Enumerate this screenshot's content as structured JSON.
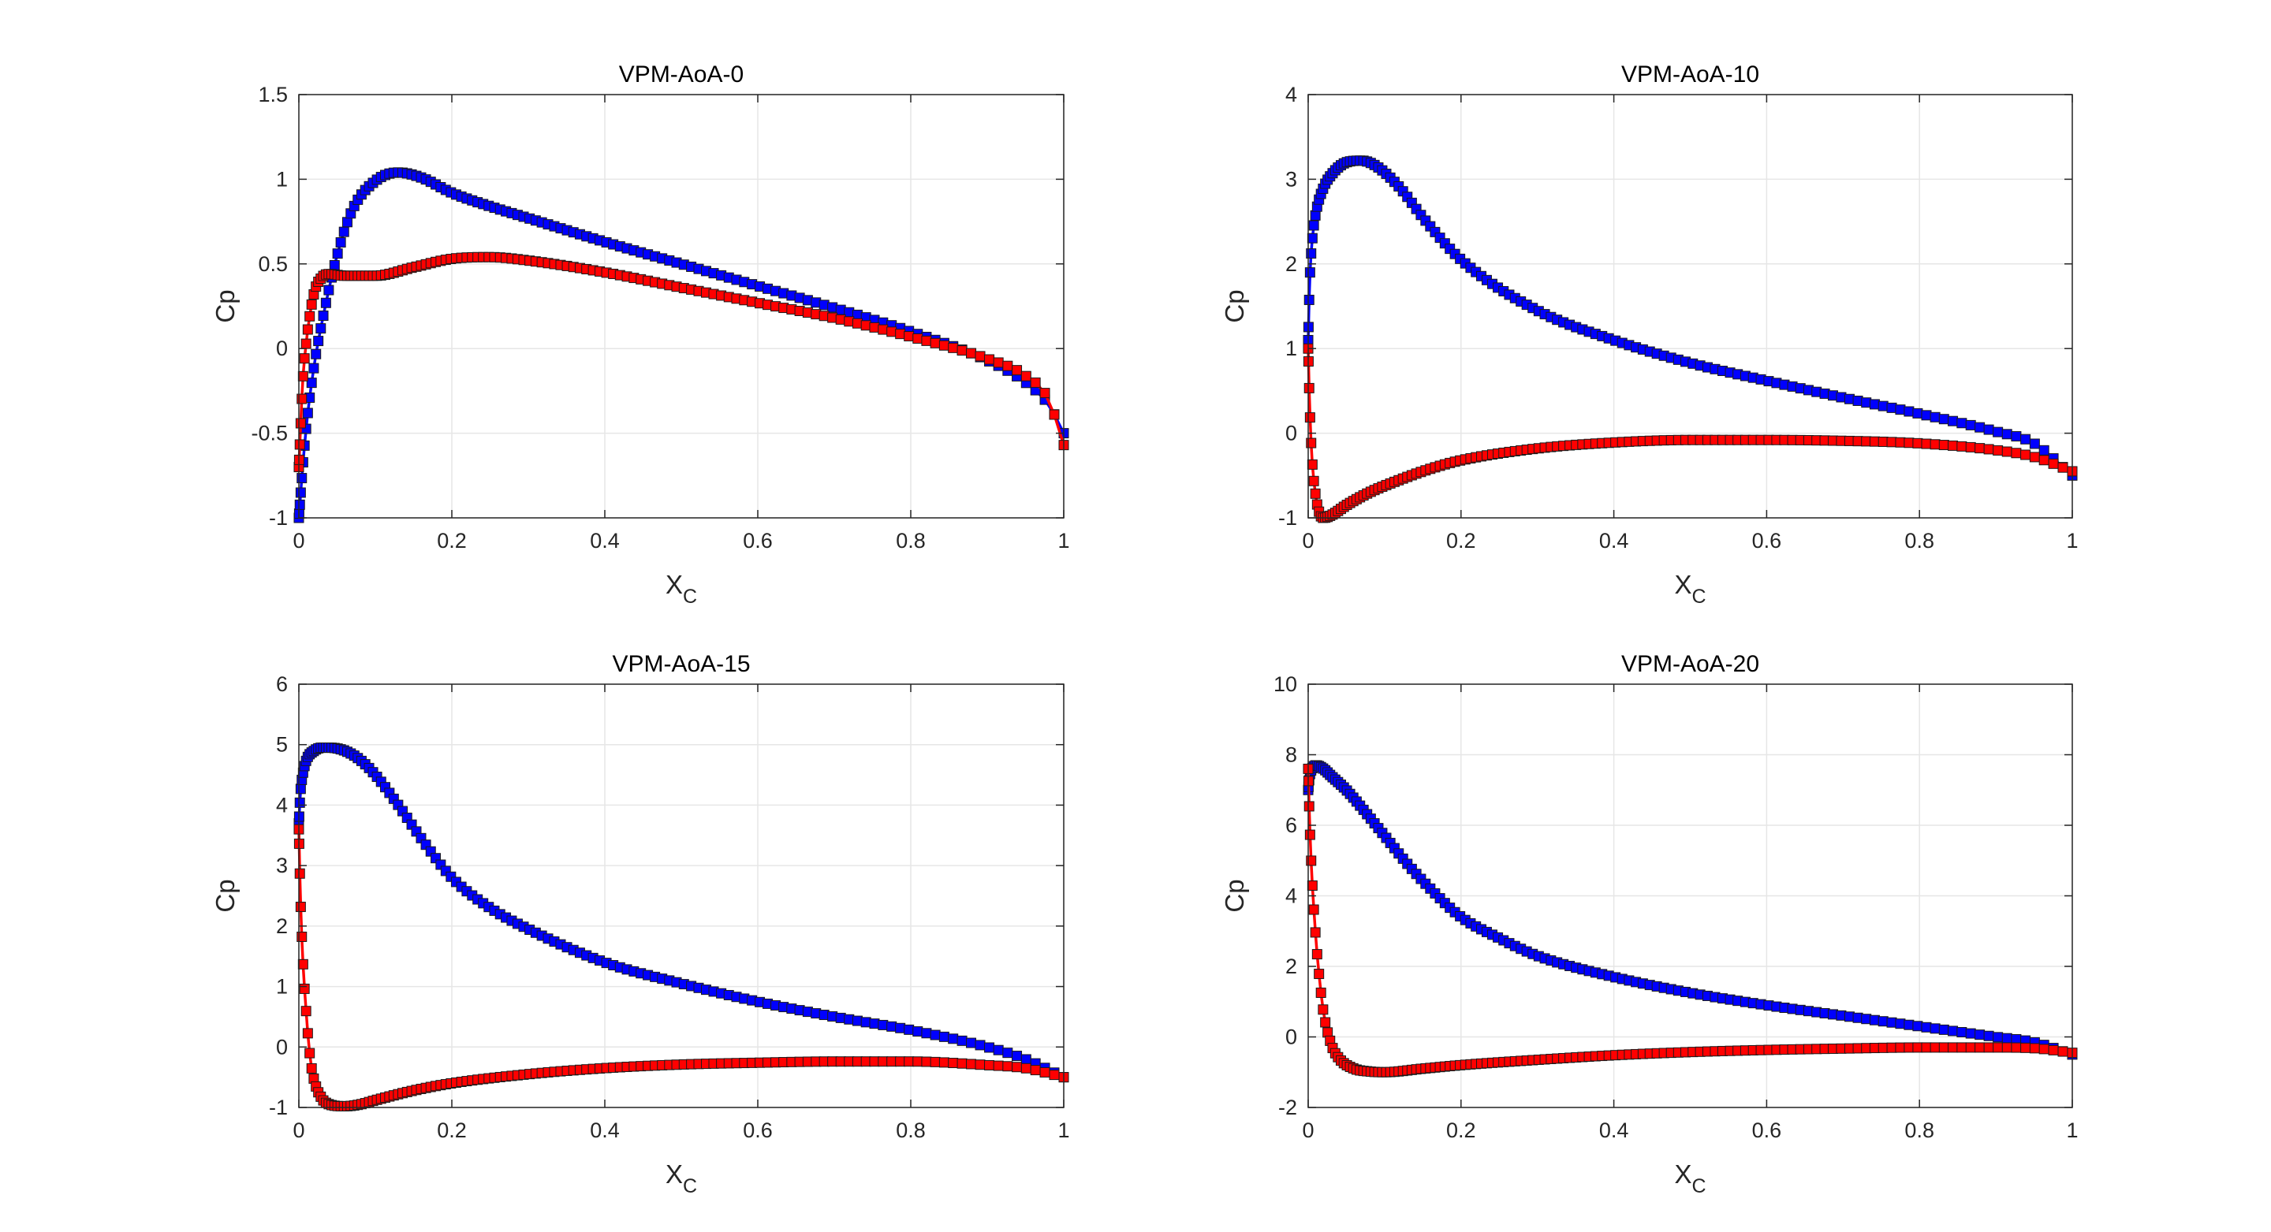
{
  "chart_data": [
    {
      "type": "line",
      "title": "VPM-AoA-0",
      "xlabel": "X",
      "xlabel_sub": "C",
      "ylabel": "Cp",
      "xlim": [
        0,
        1
      ],
      "ylim": [
        -1,
        1.5
      ],
      "xticks": [
        0,
        0.2,
        0.4,
        0.6,
        0.8,
        1
      ],
      "xtick_labels": [
        "0",
        "0.2",
        "0.4",
        "0.6",
        "0.8",
        "1"
      ],
      "yticks": [
        -1,
        -0.5,
        0,
        0.5,
        1,
        1.5
      ],
      "ytick_labels": [
        "-1",
        "-0.5",
        "0",
        "0.5",
        "1",
        "1.5"
      ],
      "grid": true,
      "series": [
        {
          "color": "#0000ff",
          "marker": "square",
          "x": [
            0,
            0.005,
            0.01,
            0.02,
            0.03,
            0.05,
            0.07,
            0.1,
            0.13,
            0.16,
            0.2,
            0.25,
            0.3,
            0.4,
            0.5,
            0.6,
            0.7,
            0.8,
            0.9,
            0.95,
            0.98,
            1
          ],
          "y": [
            -1,
            -0.7,
            -0.45,
            -0.1,
            0.15,
            0.55,
            0.82,
            0.99,
            1.04,
            1.01,
            0.92,
            0.84,
            0.77,
            0.63,
            0.5,
            0.37,
            0.24,
            0.1,
            -0.07,
            -0.2,
            -0.33,
            -0.5
          ]
        },
        {
          "color": "#ff0000",
          "marker": "square",
          "x": [
            0,
            0.005,
            0.01,
            0.02,
            0.03,
            0.04,
            0.06,
            0.1,
            0.15,
            0.2,
            0.25,
            0.3,
            0.4,
            0.5,
            0.6,
            0.7,
            0.8,
            0.9,
            0.95,
            0.98,
            1
          ],
          "y": [
            -0.7,
            -0.2,
            0.05,
            0.33,
            0.42,
            0.44,
            0.43,
            0.43,
            0.48,
            0.53,
            0.54,
            0.52,
            0.45,
            0.36,
            0.27,
            0.18,
            0.07,
            -0.06,
            -0.16,
            -0.3,
            -0.57
          ]
        }
      ]
    },
    {
      "type": "line",
      "title": "VPM-AoA-10",
      "xlabel": "X",
      "xlabel_sub": "C",
      "ylabel": "Cp",
      "xlim": [
        0,
        1
      ],
      "ylim": [
        -1,
        4
      ],
      "xticks": [
        0,
        0.2,
        0.4,
        0.6,
        0.8,
        1
      ],
      "xtick_labels": [
        "0",
        "0.2",
        "0.4",
        "0.6",
        "0.8",
        "1"
      ],
      "yticks": [
        -1,
        0,
        1,
        2,
        3,
        4
      ],
      "ytick_labels": [
        "-1",
        "0",
        "1",
        "2",
        "3",
        "4"
      ],
      "grid": true,
      "series": [
        {
          "color": "#0000ff",
          "marker": "square",
          "x": [
            0,
            0.002,
            0.005,
            0.01,
            0.02,
            0.03,
            0.05,
            0.07,
            0.09,
            0.12,
            0.15,
            0.2,
            0.3,
            0.4,
            0.5,
            0.6,
            0.7,
            0.8,
            0.9,
            0.95,
            1
          ],
          "y": [
            1.1,
            1.8,
            2.25,
            2.6,
            2.9,
            3.05,
            3.2,
            3.22,
            3.15,
            2.9,
            2.55,
            2.05,
            1.45,
            1.1,
            0.83,
            0.62,
            0.42,
            0.23,
            0.02,
            -0.12,
            -0.5
          ]
        },
        {
          "color": "#ff0000",
          "marker": "square",
          "x": [
            0,
            0.002,
            0.005,
            0.01,
            0.015,
            0.02,
            0.03,
            0.05,
            0.08,
            0.12,
            0.16,
            0.2,
            0.3,
            0.4,
            0.5,
            0.6,
            0.7,
            0.8,
            0.9,
            0.95,
            1
          ],
          "y": [
            1.0,
            0.3,
            -0.3,
            -0.75,
            -0.95,
            -1.0,
            -0.97,
            -0.85,
            -0.7,
            -0.55,
            -0.42,
            -0.32,
            -0.18,
            -0.11,
            -0.08,
            -0.08,
            -0.09,
            -0.12,
            -0.2,
            -0.28,
            -0.45
          ]
        }
      ]
    },
    {
      "type": "line",
      "title": "VPM-AoA-15",
      "xlabel": "X",
      "xlabel_sub": "C",
      "ylabel": "Cp",
      "xlim": [
        0,
        1
      ],
      "ylim": [
        -1,
        6
      ],
      "xticks": [
        0,
        0.2,
        0.4,
        0.6,
        0.8,
        1
      ],
      "xtick_labels": [
        "0",
        "0.2",
        "0.4",
        "0.6",
        "0.8",
        "1"
      ],
      "yticks": [
        -1,
        0,
        1,
        2,
        3,
        4,
        5,
        6
      ],
      "ytick_labels": [
        "-1",
        "0",
        "1",
        "2",
        "3",
        "4",
        "5",
        "6"
      ],
      "grid": true,
      "series": [
        {
          "color": "#0000ff",
          "marker": "square",
          "x": [
            0,
            0.002,
            0.005,
            0.01,
            0.02,
            0.03,
            0.04,
            0.06,
            0.08,
            0.1,
            0.13,
            0.16,
            0.2,
            0.25,
            0.3,
            0.4,
            0.5,
            0.6,
            0.7,
            0.8,
            0.9,
            0.95,
            1
          ],
          "y": [
            3.7,
            4.2,
            4.5,
            4.75,
            4.9,
            4.95,
            4.95,
            4.9,
            4.75,
            4.5,
            4.0,
            3.45,
            2.8,
            2.3,
            1.95,
            1.4,
            1.05,
            0.75,
            0.5,
            0.28,
            0.0,
            -0.2,
            -0.5
          ]
        },
        {
          "color": "#ff0000",
          "marker": "square",
          "x": [
            0,
            0.002,
            0.005,
            0.01,
            0.015,
            0.02,
            0.03,
            0.04,
            0.06,
            0.08,
            0.1,
            0.15,
            0.2,
            0.3,
            0.4,
            0.5,
            0.6,
            0.7,
            0.8,
            0.9,
            0.95,
            1
          ],
          "y": [
            3.6,
            2.5,
            1.5,
            0.5,
            -0.2,
            -0.55,
            -0.85,
            -0.95,
            -0.98,
            -0.95,
            -0.88,
            -0.72,
            -0.6,
            -0.45,
            -0.35,
            -0.29,
            -0.26,
            -0.24,
            -0.24,
            -0.3,
            -0.35,
            -0.5
          ]
        }
      ]
    },
    {
      "type": "line",
      "title": "VPM-AoA-20",
      "xlabel": "X",
      "xlabel_sub": "C",
      "ylabel": "Cp",
      "xlim": [
        0,
        1
      ],
      "ylim": [
        -2,
        10
      ],
      "xticks": [
        0,
        0.2,
        0.4,
        0.6,
        0.8,
        1
      ],
      "xtick_labels": [
        "0",
        "0.2",
        "0.4",
        "0.6",
        "0.8",
        "1"
      ],
      "yticks": [
        -2,
        0,
        2,
        4,
        6,
        8,
        10
      ],
      "ytick_labels": [
        "-2",
        "0",
        "2",
        "4",
        "6",
        "8",
        "10"
      ],
      "grid": true,
      "series": [
        {
          "color": "#0000ff",
          "marker": "square",
          "x": [
            0,
            0.002,
            0.005,
            0.01,
            0.02,
            0.03,
            0.05,
            0.07,
            0.1,
            0.13,
            0.16,
            0.2,
            0.25,
            0.3,
            0.4,
            0.5,
            0.6,
            0.7,
            0.8,
            0.9,
            0.95,
            1
          ],
          "y": [
            7.0,
            7.4,
            7.6,
            7.7,
            7.6,
            7.4,
            7.0,
            6.5,
            5.7,
            4.9,
            4.2,
            3.4,
            2.8,
            2.3,
            1.7,
            1.25,
            0.9,
            0.6,
            0.3,
            0.0,
            -0.15,
            -0.5
          ]
        },
        {
          "color": "#ff0000",
          "marker": "square",
          "x": [
            0,
            0.002,
            0.005,
            0.01,
            0.015,
            0.02,
            0.03,
            0.04,
            0.06,
            0.08,
            0.1,
            0.15,
            0.2,
            0.3,
            0.4,
            0.5,
            0.6,
            0.7,
            0.8,
            0.9,
            0.95,
            1
          ],
          "y": [
            7.6,
            6.0,
            4.5,
            2.8,
            1.6,
            0.7,
            -0.2,
            -0.6,
            -0.9,
            -0.98,
            -1.0,
            -0.9,
            -0.8,
            -0.65,
            -0.52,
            -0.43,
            -0.37,
            -0.33,
            -0.3,
            -0.3,
            -0.32,
            -0.45
          ]
        }
      ]
    }
  ]
}
